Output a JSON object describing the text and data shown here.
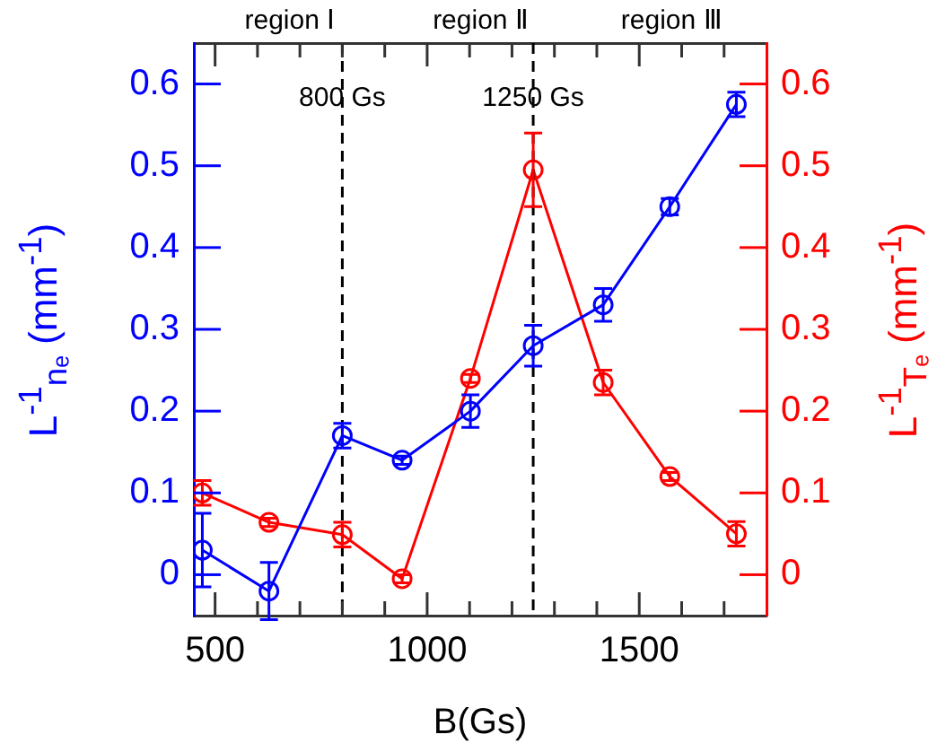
{
  "chart_data": {
    "type": "line",
    "xlabel": "B(Gs)",
    "ylabel": "L$^{-1}$$_{nₑ}$ (mm$^{-1}$)",
    "y2label": "L$^{-1}$$_{Tₑ}$ (mm$^{-1}$)",
    "x": [
      470,
      627,
      800,
      941,
      1102,
      1250,
      1415,
      1572,
      1729
    ],
    "series": [
      {
        "color": "#0000ff",
        "axis": "y",
        "values": [
          0.03,
          -0.02,
          0.17,
          0.14,
          0.2,
          0.28,
          0.33,
          0.45,
          0.575
        ],
        "errors": [
          0.045,
          0.035,
          0.015,
          0.005,
          0.02,
          0.025,
          0.02,
          0.01,
          0.015
        ]
      },
      {
        "color": "#ff0000",
        "axis": "y2",
        "values": [
          0.1,
          0.064,
          0.049,
          -0.005,
          0.24,
          0.495,
          0.235,
          0.12,
          0.05
        ],
        "errors": [
          0.015,
          0.005,
          0.015,
          0.005,
          0.005,
          0.045,
          0.015,
          0.005,
          0.015
        ]
      }
    ],
    "xlim": [
      450,
      1800
    ],
    "xticks": [
      500,
      {
        "value": 600,
        "label": null
      },
      {
        "value": 700,
        "label": null
      },
      {
        "value": 800,
        "label": null
      },
      {
        "value": 900,
        "label": null
      },
      1000,
      {
        "value": 1100,
        "label": null
      },
      {
        "value": 1200,
        "label": null
      },
      {
        "value": 1300,
        "label": null
      },
      {
        "value": 1400,
        "label": null
      },
      1500,
      {
        "value": 1600,
        "label": null
      },
      {
        "value": 1700,
        "label": null
      }
    ],
    "ylim": [
      -0.05,
      0.65
    ],
    "yticks": [
      0,
      0.1,
      0.2,
      0.3,
      0.4,
      0.5,
      0.6
    ],
    "y2lim": [
      -0.05,
      0.65
    ],
    "y2ticks": [
      0,
      0.1,
      0.2,
      0.3,
      0.4,
      0.5,
      0.6
    ],
    "ref_lines": [
      {
        "axis": "x",
        "value": 800,
        "label": "800 Gs",
        "color": "#000000",
        "line_style": "dashed"
      },
      {
        "axis": "x",
        "value": 1250,
        "label": "1250 Gs",
        "color": "#000000",
        "line_style": "dashed"
      }
    ],
    "annotations": [
      "region Ⅰ",
      "region Ⅱ",
      "region Ⅲ"
    ],
    "marker": "circle",
    "line_style": "solid",
    "grid": false,
    "legend": false
  }
}
